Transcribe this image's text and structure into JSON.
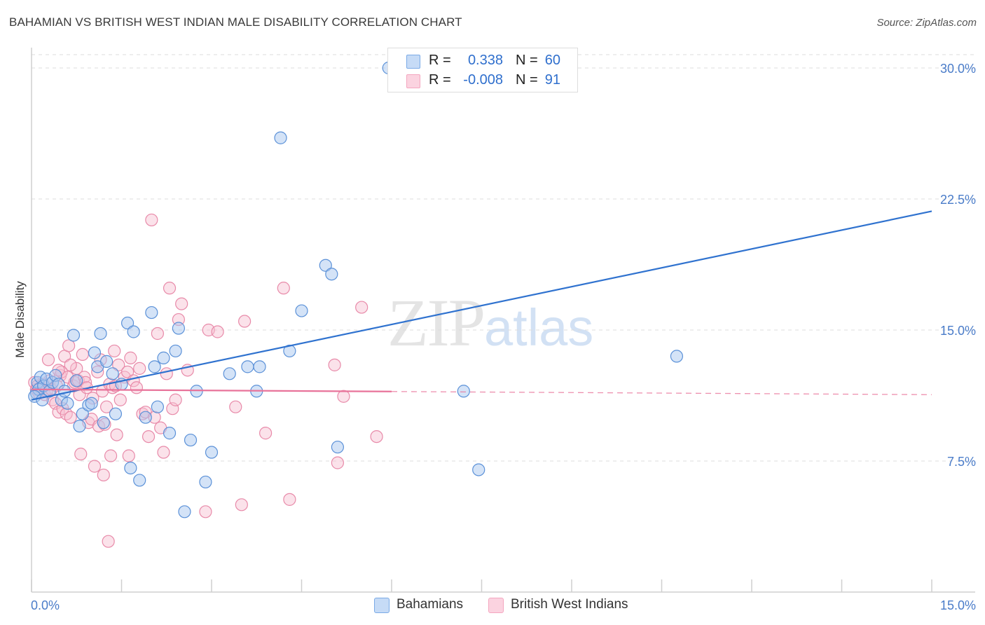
{
  "header": {
    "title": "BAHAMIAN VS BRITISH WEST INDIAN MALE DISABILITY CORRELATION CHART",
    "source": "Source: ZipAtlas.com"
  },
  "watermark": {
    "zip": "ZIP",
    "atlas": "atlas"
  },
  "legend": {
    "rows": [
      {
        "r_label": "R =",
        "r_value": "0.338",
        "n_label": "N =",
        "n_value": "60",
        "color": "#7aaae6"
      },
      {
        "r_label": "R =",
        "r_value": "-0.008",
        "n_label": "N =",
        "n_value": "91",
        "color": "#f4a6bf"
      }
    ]
  },
  "bottom_legend": [
    {
      "label": "Bahamians",
      "color": "#7aaae6"
    },
    {
      "label": "British West Indians",
      "color": "#f4a6bf"
    }
  ],
  "colors": {
    "blue_fill": "#a9c8f0",
    "blue_stroke": "#5b91d8",
    "blue_line": "#2f72cf",
    "pink_fill": "#f7bfd1",
    "pink_stroke": "#e88aa9",
    "pink_line": "#e8739a",
    "grid": "#dcdcdc",
    "axis_label": "#4a7cc9"
  },
  "chart_data": {
    "type": "scatter",
    "title": "BAHAMIAN VS BRITISH WEST INDIAN MALE DISABILITY CORRELATION CHART",
    "xlabel": "",
    "ylabel": "Male Disability",
    "xlim": [
      0,
      15
    ],
    "ylim": [
      0,
      31
    ],
    "x_tick_labels": [
      "0.0%",
      "15.0%"
    ],
    "y_ticks": [
      7.5,
      15.0,
      22.5,
      30.0
    ],
    "y_tick_labels": [
      "7.5%",
      "15.0%",
      "22.5%",
      "30.0%"
    ],
    "grid": true,
    "legend_position": "top-center",
    "series": [
      {
        "name": "Bahamians",
        "points": [
          [
            0.08,
            11.4
          ],
          [
            0.1,
            12.0
          ],
          [
            0.12,
            11.6
          ],
          [
            0.15,
            12.3
          ],
          [
            0.2,
            11.8
          ],
          [
            0.25,
            12.2
          ],
          [
            0.3,
            11.5
          ],
          [
            0.35,
            12.0
          ],
          [
            0.4,
            12.4
          ],
          [
            0.45,
            11.9
          ],
          [
            0.5,
            11.0
          ],
          [
            0.55,
            11.5
          ],
          [
            0.6,
            10.8
          ],
          [
            0.7,
            14.7
          ],
          [
            0.75,
            12.1
          ],
          [
            0.8,
            9.5
          ],
          [
            0.85,
            10.2
          ],
          [
            0.95,
            10.7
          ],
          [
            1.0,
            10.8
          ],
          [
            1.05,
            13.7
          ],
          [
            1.1,
            12.9
          ],
          [
            1.15,
            14.8
          ],
          [
            1.2,
            9.7
          ],
          [
            1.25,
            13.2
          ],
          [
            1.35,
            12.5
          ],
          [
            1.4,
            10.2
          ],
          [
            1.5,
            11.9
          ],
          [
            1.6,
            15.4
          ],
          [
            1.65,
            7.1
          ],
          [
            1.7,
            14.9
          ],
          [
            1.8,
            6.4
          ],
          [
            1.9,
            10.0
          ],
          [
            2.0,
            16.0
          ],
          [
            2.05,
            12.9
          ],
          [
            2.1,
            10.6
          ],
          [
            2.2,
            13.4
          ],
          [
            2.3,
            9.1
          ],
          [
            2.4,
            13.8
          ],
          [
            2.45,
            15.1
          ],
          [
            2.55,
            4.6
          ],
          [
            2.65,
            8.7
          ],
          [
            2.75,
            11.5
          ],
          [
            2.9,
            6.3
          ],
          [
            3.0,
            8.0
          ],
          [
            3.3,
            12.5
          ],
          [
            3.6,
            12.9
          ],
          [
            3.75,
            11.5
          ],
          [
            3.8,
            12.9
          ],
          [
            4.15,
            26.0
          ],
          [
            4.3,
            13.8
          ],
          [
            4.5,
            16.1
          ],
          [
            4.9,
            18.7
          ],
          [
            5.0,
            18.2
          ],
          [
            5.1,
            8.3
          ],
          [
            5.95,
            30.0
          ],
          [
            7.2,
            11.5
          ],
          [
            7.45,
            7.0
          ],
          [
            10.75,
            13.5
          ],
          [
            0.05,
            11.2
          ],
          [
            0.18,
            11.0
          ]
        ]
      },
      {
        "name": "British West Indians",
        "points": [
          [
            0.05,
            12.0
          ],
          [
            0.08,
            11.6
          ],
          [
            0.1,
            11.8
          ],
          [
            0.12,
            11.4
          ],
          [
            0.15,
            11.7
          ],
          [
            0.2,
            11.9
          ],
          [
            0.22,
            11.3
          ],
          [
            0.25,
            11.5
          ],
          [
            0.28,
            13.3
          ],
          [
            0.3,
            12.1
          ],
          [
            0.33,
            11.6
          ],
          [
            0.35,
            11.0
          ],
          [
            0.4,
            10.8
          ],
          [
            0.42,
            11.8
          ],
          [
            0.45,
            10.3
          ],
          [
            0.48,
            12.4
          ],
          [
            0.5,
            12.6
          ],
          [
            0.52,
            10.5
          ],
          [
            0.55,
            13.5
          ],
          [
            0.58,
            10.2
          ],
          [
            0.6,
            12.3
          ],
          [
            0.62,
            14.1
          ],
          [
            0.65,
            10.0
          ],
          [
            0.7,
            11.8
          ],
          [
            0.72,
            12.0
          ],
          [
            0.75,
            12.8
          ],
          [
            0.78,
            12.1
          ],
          [
            0.8,
            11.3
          ],
          [
            0.82,
            7.9
          ],
          [
            0.85,
            13.6
          ],
          [
            0.88,
            12.3
          ],
          [
            0.9,
            12.0
          ],
          [
            0.92,
            11.7
          ],
          [
            0.95,
            9.7
          ],
          [
            1.0,
            9.9
          ],
          [
            1.02,
            11.1
          ],
          [
            1.05,
            7.2
          ],
          [
            1.1,
            12.6
          ],
          [
            1.12,
            9.5
          ],
          [
            1.15,
            13.3
          ],
          [
            1.18,
            11.5
          ],
          [
            1.2,
            6.7
          ],
          [
            1.22,
            9.6
          ],
          [
            1.25,
            10.6
          ],
          [
            1.28,
            2.9
          ],
          [
            1.3,
            11.9
          ],
          [
            1.32,
            7.8
          ],
          [
            1.35,
            11.7
          ],
          [
            1.38,
            13.8
          ],
          [
            1.4,
            11.8
          ],
          [
            1.42,
            9.0
          ],
          [
            1.45,
            13.0
          ],
          [
            1.48,
            11.0
          ],
          [
            1.55,
            12.3
          ],
          [
            1.6,
            12.6
          ],
          [
            1.62,
            7.8
          ],
          [
            1.65,
            13.4
          ],
          [
            1.7,
            12.1
          ],
          [
            1.75,
            11.7
          ],
          [
            1.8,
            12.8
          ],
          [
            1.85,
            10.2
          ],
          [
            1.9,
            10.3
          ],
          [
            1.95,
            8.9
          ],
          [
            2.0,
            21.3
          ],
          [
            2.05,
            10.0
          ],
          [
            2.1,
            14.8
          ],
          [
            2.15,
            9.4
          ],
          [
            2.2,
            8.0
          ],
          [
            2.25,
            12.5
          ],
          [
            2.3,
            17.4
          ],
          [
            2.35,
            10.5
          ],
          [
            2.4,
            11.0
          ],
          [
            2.45,
            15.6
          ],
          [
            2.5,
            16.5
          ],
          [
            2.6,
            12.7
          ],
          [
            2.9,
            4.6
          ],
          [
            2.95,
            15.0
          ],
          [
            3.1,
            14.9
          ],
          [
            3.4,
            10.6
          ],
          [
            3.5,
            5.0
          ],
          [
            3.55,
            15.5
          ],
          [
            3.9,
            9.1
          ],
          [
            4.2,
            17.4
          ],
          [
            4.3,
            5.3
          ],
          [
            5.05,
            13.0
          ],
          [
            5.1,
            7.4
          ],
          [
            5.2,
            11.2
          ],
          [
            5.5,
            16.3
          ],
          [
            5.75,
            8.9
          ],
          [
            0.65,
            13.0
          ],
          [
            0.45,
            12.7
          ]
        ]
      }
    ],
    "trendlines": [
      {
        "series": "Bahamians",
        "x": [
          0,
          15
        ],
        "y": [
          11.0,
          21.8
        ]
      },
      {
        "series": "British West Indians",
        "x": [
          0,
          15
        ],
        "y": [
          11.6,
          11.3
        ],
        "solid_until_x": 6.0
      }
    ]
  }
}
